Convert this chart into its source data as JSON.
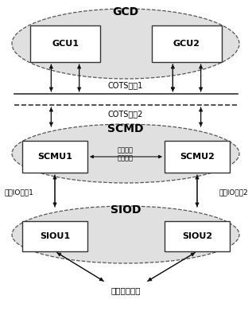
{
  "bg_color": "#ffffff",
  "gcd_label": "GCD",
  "scmd_label": "SCMD",
  "siod_label": "SIOD",
  "gcu1_label": "GCU1",
  "gcu2_label": "GCU2",
  "scmu1_label": "SCMU1",
  "scmu2_label": "SCMU2",
  "siou1_label": "SIOU1",
  "siou2_label": "SIOU2",
  "cots1_label": "COTS内网1",
  "cots2_label": "COTS内网2",
  "io_bus1_label": "专用IO总线1",
  "io_bus2_label": "专用IO总线2",
  "redundant_label": "专用冗余\n通信网络",
  "ext_label": "外部设备接口",
  "ellipse_fill": "#e0e0e0",
  "ellipse_edge": "#555555",
  "box_fill": "#ffffff",
  "box_edge": "#333333",
  "arrow_color": "#111111",
  "line_color": "#333333",
  "dashed_color": "#333333"
}
